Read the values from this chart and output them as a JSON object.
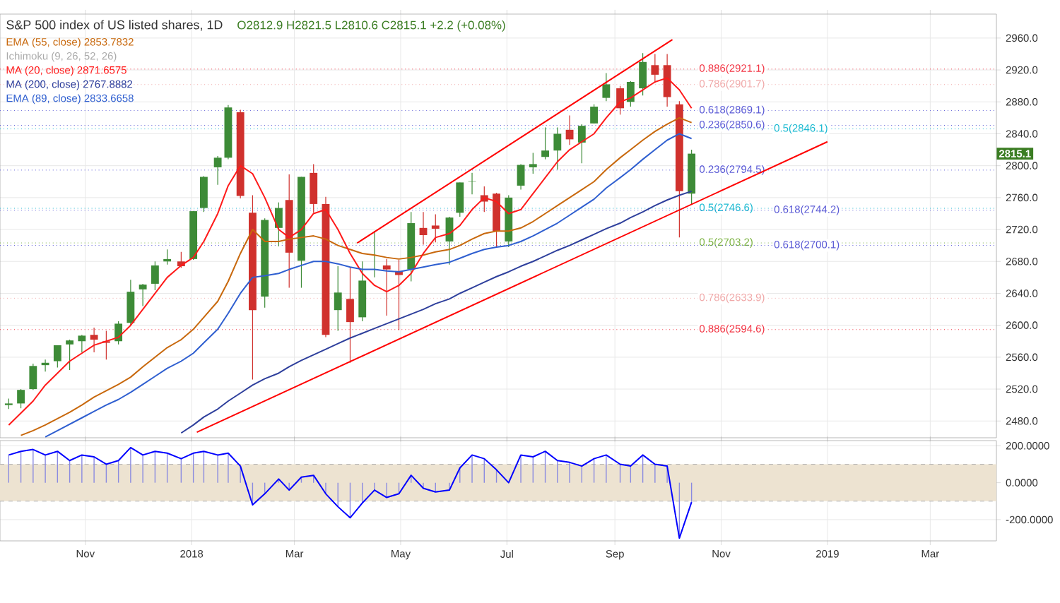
{
  "chart_data": [
    {
      "type": "candlestick",
      "title": "S&P 500 index of US listed shares, 1D",
      "subtitle": "O2812.9 H2821.5 L2810.6 C2815.1 +2.2 (+0.08%)",
      "x": [
        "2017-09-18",
        "2017-09-25",
        "2017-10-02",
        "2017-10-09",
        "2017-10-16",
        "2017-10-23",
        "2017-10-30",
        "2017-11-06",
        "2017-11-13",
        "2017-11-20",
        "2017-11-27",
        "2017-12-04",
        "2017-12-11",
        "2017-12-18",
        "2017-12-26",
        "2018-01-02",
        "2018-01-08",
        "2018-01-16",
        "2018-01-22",
        "2018-01-29",
        "2018-02-05",
        "2018-02-12",
        "2018-02-20",
        "2018-02-26",
        "2018-03-05",
        "2018-03-12",
        "2018-03-19",
        "2018-03-26",
        "2018-04-02",
        "2018-04-09",
        "2018-04-16",
        "2018-04-23",
        "2018-04-30",
        "2018-05-07",
        "2018-05-14",
        "2018-05-21",
        "2018-05-29",
        "2018-06-04",
        "2018-06-11",
        "2018-06-18",
        "2018-06-25",
        "2018-07-02",
        "2018-07-09",
        "2018-07-16",
        "2018-07-23",
        "2018-07-30",
        "2018-08-06",
        "2018-08-13",
        "2018-08-20",
        "2018-08-27",
        "2018-09-04",
        "2018-09-10",
        "2018-09-17",
        "2018-09-24",
        "2018-10-01",
        "2018-10-08",
        "2018-10-15"
      ],
      "ohlc": [
        [
          2500,
          2508,
          2495,
          2502
        ],
        [
          2502,
          2520,
          2496,
          2519
        ],
        [
          2520,
          2552,
          2519,
          2549
        ],
        [
          2550,
          2557,
          2542,
          2553
        ],
        [
          2555,
          2575,
          2547,
          2575
        ],
        [
          2576,
          2582,
          2544,
          2581
        ],
        [
          2580,
          2588,
          2566,
          2587
        ],
        [
          2588,
          2597,
          2566,
          2582
        ],
        [
          2580,
          2593,
          2557,
          2578
        ],
        [
          2580,
          2605,
          2576,
          2602
        ],
        [
          2603,
          2657,
          2600,
          2642
        ],
        [
          2645,
          2652,
          2624,
          2651
        ],
        [
          2652,
          2680,
          2644,
          2675
        ],
        [
          2680,
          2695,
          2676,
          2683
        ],
        [
          2680,
          2692,
          2672,
          2674
        ],
        [
          2683,
          2743,
          2682,
          2743
        ],
        [
          2747,
          2787,
          2742,
          2786
        ],
        [
          2798,
          2812,
          2776,
          2810
        ],
        [
          2810,
          2876,
          2808,
          2873
        ],
        [
          2867,
          2870,
          2759,
          2762
        ],
        [
          2741,
          2763,
          2532,
          2619
        ],
        [
          2636,
          2734,
          2622,
          2732
        ],
        [
          2722,
          2754,
          2699,
          2747
        ],
        [
          2757,
          2789,
          2647,
          2691
        ],
        [
          2681,
          2786,
          2647,
          2786
        ],
        [
          2791,
          2802,
          2741,
          2752
        ],
        [
          2752,
          2761,
          2585,
          2588
        ],
        [
          2619,
          2674,
          2593,
          2641
        ],
        [
          2633,
          2673,
          2553,
          2604
        ],
        [
          2610,
          2680,
          2605,
          2656
        ],
        [
          2670,
          2718,
          2660,
          2670
        ],
        [
          2675,
          2683,
          2612,
          2670
        ],
        [
          2668,
          2682,
          2594,
          2663
        ],
        [
          2670,
          2742,
          2655,
          2728
        ],
        [
          2722,
          2742,
          2701,
          2713
        ],
        [
          2725,
          2739,
          2704,
          2721
        ],
        [
          2705,
          2736,
          2676,
          2735
        ],
        [
          2741,
          2779,
          2736,
          2779
        ],
        [
          2780,
          2791,
          2764,
          2780
        ],
        [
          2763,
          2774,
          2742,
          2755
        ],
        [
          2765,
          2766,
          2698,
          2718
        ],
        [
          2705,
          2763,
          2698,
          2760
        ],
        [
          2775,
          2802,
          2770,
          2801
        ],
        [
          2798,
          2816,
          2790,
          2802
        ],
        [
          2811,
          2848,
          2808,
          2819
        ],
        [
          2819,
          2848,
          2795,
          2840
        ],
        [
          2845,
          2863,
          2826,
          2833
        ],
        [
          2829,
          2852,
          2803,
          2850
        ],
        [
          2853,
          2877,
          2853,
          2874
        ],
        [
          2885,
          2916,
          2881,
          2902
        ],
        [
          2897,
          2900,
          2864,
          2872
        ],
        [
          2880,
          2906,
          2874,
          2905
        ],
        [
          2897,
          2941,
          2888,
          2930
        ],
        [
          2926,
          2940,
          2904,
          2914
        ],
        [
          2926,
          2940,
          2874,
          2886
        ],
        [
          2877,
          2881,
          2710,
          2768
        ],
        [
          2765,
          2820,
          2752,
          2815.1
        ]
      ],
      "series": [
        {
          "type": "line",
          "name": "EMA (55, close) 2853.7832",
          "color": "#c8680c",
          "values": [
            null,
            2462,
            2468,
            2475,
            2483,
            2491,
            2500,
            2510,
            2518,
            2526,
            2535,
            2548,
            2560,
            2572,
            2582,
            2595,
            2610,
            2630,
            2655,
            2690,
            2720,
            2705,
            2705,
            2708,
            2710,
            2712,
            2708,
            2700,
            2695,
            2690,
            2688,
            2685,
            2683,
            2685,
            2688,
            2692,
            2695,
            2700,
            2708,
            2715,
            2718,
            2718,
            2722,
            2730,
            2740,
            2750,
            2760,
            2770,
            2780,
            2795,
            2810,
            2820,
            2832,
            2843,
            2852,
            2860,
            2854
          ]
        },
        {
          "type": "line",
          "name": "MA (20, close) 2871.6575",
          "color": "#ff1a1a",
          "values": [
            2475,
            2490,
            2505,
            2525,
            2540,
            2555,
            2565,
            2575,
            2580,
            2585,
            2600,
            2620,
            2640,
            2660,
            2675,
            2685,
            2705,
            2740,
            2775,
            2800,
            2790,
            2760,
            2720,
            2710,
            2720,
            2740,
            2745,
            2720,
            2690,
            2665,
            2650,
            2642,
            2650,
            2665,
            2690,
            2710,
            2715,
            2725,
            2745,
            2760,
            2755,
            2740,
            2745,
            2765,
            2785,
            2805,
            2820,
            2830,
            2840,
            2860,
            2880,
            2885,
            2895,
            2905,
            2910,
            2895,
            2872
          ]
        },
        {
          "type": "line",
          "name": "MA (200, close) 2767.8882",
          "color": "#2e3f9c",
          "values": [
            null,
            null,
            null,
            null,
            null,
            null,
            null,
            null,
            null,
            null,
            null,
            null,
            null,
            null,
            2465,
            2475,
            2485,
            2495,
            2505,
            2515,
            2525,
            2533,
            2540,
            2548,
            2556,
            2563,
            2570,
            2577,
            2584,
            2590,
            2596,
            2602,
            2608,
            2614,
            2620,
            2627,
            2633,
            2640,
            2647,
            2654,
            2661,
            2667,
            2674,
            2680,
            2687,
            2694,
            2700,
            2707,
            2714,
            2721,
            2728,
            2735,
            2742,
            2750,
            2757,
            2763,
            2768
          ]
        },
        {
          "type": "line",
          "name": "EMA (89, close) 2833.6658",
          "color": "#2f5fd0",
          "values": [
            null,
            null,
            null,
            2460,
            2468,
            2476,
            2484,
            2492,
            2500,
            2507,
            2516,
            2526,
            2536,
            2546,
            2555,
            2565,
            2578,
            2595,
            2615,
            2640,
            2660,
            2662,
            2665,
            2670,
            2675,
            2680,
            2680,
            2677,
            2673,
            2670,
            2670,
            2668,
            2667,
            2670,
            2673,
            2676,
            2679,
            2684,
            2690,
            2695,
            2698,
            2700,
            2705,
            2712,
            2720,
            2728,
            2738,
            2748,
            2758,
            2772,
            2785,
            2795,
            2808,
            2820,
            2832,
            2840,
            2834
          ]
        },
        {
          "type": "line",
          "color": "#ff0000",
          "x": [
            "2018-04-06",
            "2018-10-04"
          ],
          "values": [
            2703,
            2958
          ]
        },
        {
          "type": "line",
          "color": "#ff0000",
          "x": [
            "2018-01-04",
            "2019-01-01"
          ],
          "values": [
            2466,
            2830
          ]
        }
      ],
      "xlim": [
        "2017-09-13",
        "2019-04-08"
      ],
      "ylim": [
        2459,
        2990
      ],
      "xticks": [
        {
          "value": "2017-11-01",
          "label": null
        },
        {
          "value": "2018-01-01",
          "label": null
        },
        {
          "value": "2018-03-01",
          "label": null
        },
        {
          "value": "2018-05-01",
          "label": null
        },
        {
          "value": "2018-07-01",
          "label": null
        },
        {
          "value": "2018-09-01",
          "label": null
        },
        {
          "value": "2018-11-01",
          "label": null
        },
        {
          "value": "2019-01-01",
          "label": null
        },
        {
          "value": "2019-03-01",
          "label": null
        }
      ],
      "yticks": [
        {
          "value": 2480,
          "label": "2480.0"
        },
        {
          "value": 2520,
          "label": "2520.0"
        },
        {
          "value": 2560,
          "label": "2560.0"
        },
        {
          "value": 2600,
          "label": "2600.0"
        },
        {
          "value": 2640,
          "label": "2640.0"
        },
        {
          "value": 2680,
          "label": "2680.0"
        },
        {
          "value": 2720,
          "label": "2720.0"
        },
        {
          "value": 2760,
          "label": "2760.0"
        },
        {
          "value": 2800,
          "label": "2800.0"
        },
        {
          "value": 2840,
          "label": "2840.0"
        },
        {
          "value": 2880,
          "label": "2880.0"
        },
        {
          "value": 2920,
          "label": "2920.0"
        },
        {
          "value": 2960,
          "label": "2960.0"
        }
      ],
      "grid": true,
      "legend": "top left",
      "tick_labels": "y",
      "annotations": [
        "Ichimoku (9, 26, 52, 26)",
        {
          "text": "2815.1",
          "y": 2815.1
        }
      ],
      "ref_lines": [
        {
          "axis": "y",
          "value": 2921.1,
          "label": "0.886(2921.1)",
          "color": "#f23645",
          "line_style": "dotted"
        },
        {
          "axis": "y",
          "value": 2901.7,
          "label": "0.786(2901.7)",
          "color": "#f0a8a8",
          "line_style": "dotted"
        },
        {
          "axis": "y",
          "value": 2869.1,
          "label": "0.618(2869.1)",
          "color": "#5b5bd6",
          "line_style": "dotted"
        },
        {
          "axis": "y",
          "value": 2850.6,
          "label": "0.236(2850.6)",
          "color": "#5b5bd6",
          "line_style": "dotted"
        },
        {
          "axis": "y",
          "value": 2846.1,
          "label": "0.5(2846.1)",
          "color": "#19b9d1",
          "line_style": "dotted"
        },
        {
          "axis": "y",
          "value": 2794.5,
          "label": "0.236(2794.5)",
          "color": "#5b5bd6",
          "line_style": "dotted"
        },
        {
          "axis": "y",
          "value": 2746.6,
          "label": "0.5(2746.6)",
          "color": "#19b9d1",
          "line_style": "dotted"
        },
        {
          "axis": "y",
          "value": 2744.2,
          "label": "0.618(2744.2)",
          "color": "#5b5bd6",
          "line_style": "dotted"
        },
        {
          "axis": "y",
          "value": 2703.2,
          "label": "0.5(2703.2)",
          "color": "#7cb342",
          "line_style": "dotted"
        },
        {
          "axis": "y",
          "value": 2700.1,
          "label": "0.618(2700.1)",
          "color": "#5b5bd6",
          "line_style": "dotted"
        },
        {
          "axis": "y",
          "value": 2633.9,
          "label": "0.786(2633.9)",
          "color": "#f0a8a8",
          "line_style": "dotted"
        },
        {
          "axis": "y",
          "value": 2594.6,
          "label": "0.886(2594.6)",
          "color": "#f23645",
          "line_style": "dotted"
        }
      ]
    },
    {
      "type": "line",
      "x": [
        "2017-09-18",
        "2017-09-25",
        "2017-10-02",
        "2017-10-09",
        "2017-10-16",
        "2017-10-23",
        "2017-10-30",
        "2017-11-06",
        "2017-11-13",
        "2017-11-20",
        "2017-11-27",
        "2017-12-04",
        "2017-12-11",
        "2017-12-18",
        "2017-12-26",
        "2018-01-02",
        "2018-01-08",
        "2018-01-16",
        "2018-01-22",
        "2018-01-29",
        "2018-02-05",
        "2018-02-12",
        "2018-02-20",
        "2018-02-26",
        "2018-03-05",
        "2018-03-12",
        "2018-03-19",
        "2018-03-26",
        "2018-04-02",
        "2018-04-09",
        "2018-04-16",
        "2018-04-23",
        "2018-04-30",
        "2018-05-07",
        "2018-05-14",
        "2018-05-21",
        "2018-05-29",
        "2018-06-04",
        "2018-06-11",
        "2018-06-18",
        "2018-06-25",
        "2018-07-02",
        "2018-07-09",
        "2018-07-16",
        "2018-07-23",
        "2018-07-30",
        "2018-08-06",
        "2018-08-13",
        "2018-08-20",
        "2018-08-27",
        "2018-09-04",
        "2018-09-10",
        "2018-09-17",
        "2018-09-24",
        "2018-10-01",
        "2018-10-08",
        "2018-10-15"
      ],
      "series": [
        {
          "type": "bar",
          "color": "#8a8ae0",
          "values": [
            150,
            170,
            180,
            150,
            170,
            120,
            150,
            140,
            100,
            120,
            190,
            150,
            170,
            160,
            130,
            160,
            170,
            150,
            160,
            90,
            -120,
            -60,
            20,
            -40,
            30,
            40,
            -60,
            -130,
            -190,
            -110,
            -40,
            -80,
            -60,
            40,
            -30,
            -50,
            -40,
            80,
            150,
            130,
            70,
            0,
            150,
            140,
            170,
            120,
            110,
            90,
            130,
            150,
            100,
            90,
            150,
            100,
            90,
            -300,
            -105
          ]
        },
        {
          "type": "line",
          "color": "#0000ff",
          "values": [
            150,
            170,
            180,
            150,
            170,
            120,
            150,
            140,
            100,
            120,
            190,
            150,
            170,
            160,
            130,
            160,
            170,
            150,
            160,
            90,
            -120,
            -60,
            20,
            -40,
            30,
            40,
            -60,
            -130,
            -190,
            -110,
            -40,
            -80,
            -60,
            40,
            -30,
            -50,
            -40,
            80,
            150,
            130,
            70,
            0,
            150,
            140,
            170,
            120,
            110,
            90,
            130,
            150,
            100,
            90,
            150,
            100,
            90,
            -300,
            -105
          ]
        }
      ],
      "xlim": [
        "2017-09-13",
        "2019-04-08"
      ],
      "ylim": [
        -315,
        228
      ],
      "xticks": [
        {
          "value": "2017-11-01",
          "label": "Nov"
        },
        {
          "value": "2018-01-01",
          "label": "2018"
        },
        {
          "value": "2018-03-01",
          "label": "Mar"
        },
        {
          "value": "2018-05-01",
          "label": "May"
        },
        {
          "value": "2018-07-01",
          "label": "Jul"
        },
        {
          "value": "2018-09-01",
          "label": "Sep"
        },
        {
          "value": "2018-11-01",
          "label": "Nov"
        },
        {
          "value": "2019-01-01",
          "label": "2019"
        },
        {
          "value": "2019-03-01",
          "label": "Mar"
        }
      ],
      "yticks": [
        {
          "value": 200,
          "label": "200.0000"
        },
        {
          "value": 0,
          "label": "0.0000"
        },
        {
          "value": -200,
          "label": "-200.0000"
        }
      ],
      "grid": true,
      "bands": [
        {
          "axis": "y",
          "from": -100,
          "to": 100,
          "color": "#ede3d1"
        }
      ],
      "ref_lines": [
        {
          "axis": "y",
          "value": 100,
          "color": "#b2b2b2",
          "line_style": "dashed"
        },
        {
          "axis": "y",
          "value": -100,
          "color": "#b2b2b2",
          "line_style": "dashed"
        }
      ]
    }
  ]
}
